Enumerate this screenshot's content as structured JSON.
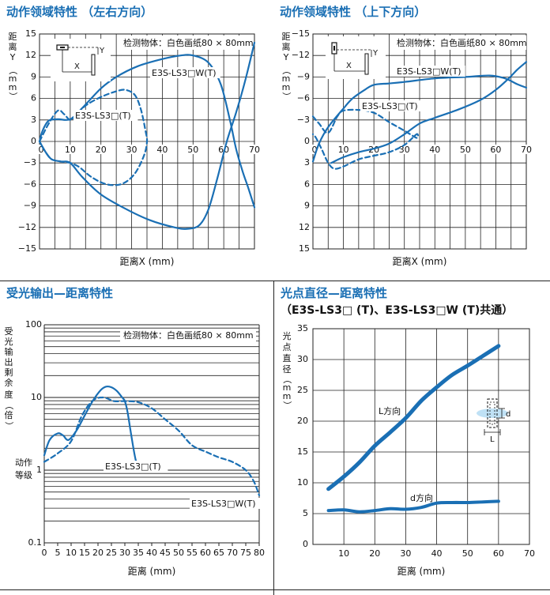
{
  "chart_data": [
    {
      "type": "line",
      "title": "动作领域特性 （左右方向）",
      "xlabel": "距离X (mm)",
      "ylabel": "距离Y（mm）",
      "xlim": [
        0,
        70
      ],
      "ylim": [
        -15,
        15
      ],
      "xticks": [
        0,
        10,
        20,
        30,
        40,
        50,
        60,
        70
      ],
      "yticks": [
        15,
        12,
        9,
        6,
        3,
        0,
        -3,
        -6,
        -9,
        -12,
        -15
      ],
      "grid": true,
      "note": "检测物体：白色画纸80 × 80mm",
      "series": [
        {
          "name": "E3S-LS3□W(T)",
          "style": "solid",
          "points": [
            [
              0,
              0
            ],
            [
              1,
              1.5
            ],
            [
              3,
              2.9
            ],
            [
              6,
              3.1
            ],
            [
              10,
              3.1
            ],
            [
              14,
              4.7
            ],
            [
              20,
              7.4
            ],
            [
              25,
              9.0
            ],
            [
              32,
              10.5
            ],
            [
              40,
              11.5
            ],
            [
              46,
              12.0
            ],
            [
              50,
              12.0
            ],
            [
              55,
              11.0
            ],
            [
              59,
              8.0
            ],
            [
              62,
              3.0
            ],
            [
              64,
              -1.0
            ],
            [
              66,
              -4.0
            ],
            [
              68,
              -6.5
            ],
            [
              70,
              -9.2
            ]
          ]
        },
        {
          "name": "E3S-LS3□W(T)",
          "style": "solid",
          "points": [
            [
              0,
              0
            ],
            [
              2,
              -1.5
            ],
            [
              4,
              -2.5
            ],
            [
              7,
              -2.8
            ],
            [
              10,
              -3.0
            ],
            [
              14,
              -5.0
            ],
            [
              20,
              -7.4
            ],
            [
              28,
              -9.4
            ],
            [
              36,
              -11.0
            ],
            [
              44,
              -12.0
            ],
            [
              48,
              -12.2
            ],
            [
              52,
              -11.7
            ],
            [
              55,
              -9.5
            ],
            [
              58,
              -5.0
            ],
            [
              61,
              0.0
            ],
            [
              64,
              4.0
            ],
            [
              67,
              8.5
            ],
            [
              70,
              13.8
            ]
          ]
        },
        {
          "name": "E3S-LS3□(T)",
          "style": "dashed",
          "points": [
            [
              0,
              0
            ],
            [
              3,
              2.5
            ],
            [
              6,
              4.3
            ],
            [
              8,
              3.8
            ],
            [
              10,
              3.0
            ],
            [
              12,
              3.7
            ],
            [
              15,
              5.0
            ],
            [
              20,
              6.2
            ],
            [
              25,
              7.0
            ],
            [
              28,
              7.2
            ],
            [
              31,
              6.5
            ],
            [
              33,
              4.5
            ],
            [
              34.5,
              1.5
            ],
            [
              35,
              0
            ],
            [
              34,
              -2.0
            ],
            [
              31,
              -4.5
            ],
            [
              27,
              -5.9
            ],
            [
              22,
              -6.0
            ],
            [
              17,
              -5.0
            ],
            [
              13,
              -3.6
            ],
            [
              10,
              -3.0
            ],
            [
              7,
              -2.8
            ],
            [
              4,
              -2.5
            ],
            [
              2,
              -1.5
            ],
            [
              0,
              0
            ]
          ]
        }
      ]
    },
    {
      "type": "line",
      "title": "动作领域特性 （上下方向）",
      "xlabel": "距离X (mm)",
      "ylabel": "距离Y（mm）",
      "xlim": [
        0,
        70
      ],
      "ylim": [
        -15,
        15
      ],
      "xticks": [
        0,
        10,
        20,
        30,
        40,
        50,
        60,
        70
      ],
      "yticks": [
        -15,
        -12,
        -9,
        -6,
        -3,
        0,
        3,
        6,
        9,
        12,
        15
      ],
      "grid": true,
      "note": "检测物体：白色画纸80 × 80mm",
      "series": [
        {
          "name": "E3S-LS3□W(T)",
          "style": "solid",
          "points": [
            [
              0,
              2.8
            ],
            [
              2,
              0.3
            ],
            [
              5,
              -2.0
            ],
            [
              10,
              -4.6
            ],
            [
              13,
              -6.0
            ],
            [
              17,
              -7.2
            ],
            [
              20,
              -7.9
            ],
            [
              25,
              -8.1
            ],
            [
              30,
              -8.3
            ],
            [
              40,
              -8.8
            ],
            [
              50,
              -9.0
            ],
            [
              58,
              -9.2
            ],
            [
              63,
              -8.8
            ],
            [
              67,
              -8.0
            ],
            [
              70,
              -7.5
            ]
          ]
        },
        {
          "name": "E3S-LS3□W(T)",
          "style": "solid",
          "points": [
            [
              6,
              3.0
            ],
            [
              10,
              2.2
            ],
            [
              15,
              1.5
            ],
            [
              20,
              1.0
            ],
            [
              25,
              0.3
            ],
            [
              30,
              -1.0
            ],
            [
              35,
              -2.5
            ],
            [
              40,
              -3.3
            ],
            [
              48,
              -4.5
            ],
            [
              55,
              -5.8
            ],
            [
              60,
              -7.2
            ],
            [
              64,
              -8.7
            ],
            [
              67,
              -10.0
            ],
            [
              70,
              -11.1
            ]
          ]
        },
        {
          "name": "E3S-LS3□(T)",
          "style": "dashed",
          "points": [
            [
              0,
              -3.5
            ],
            [
              2,
              -2.5
            ],
            [
              5,
              -1.2
            ],
            [
              8,
              -3.5
            ],
            [
              10,
              -4.3
            ],
            [
              15,
              -4.4
            ],
            [
              20,
              -4.0
            ],
            [
              25,
              -2.7
            ],
            [
              30,
              -1.5
            ],
            [
              34,
              -0.5
            ],
            [
              34,
              -1.0
            ],
            [
              30,
              0.5
            ],
            [
              25,
              1.5
            ],
            [
              20,
              2.0
            ],
            [
              15,
              2.5
            ],
            [
              10,
              3.5
            ],
            [
              7,
              3.8
            ],
            [
              5,
              3.0
            ],
            [
              3,
              1.2
            ],
            [
              1,
              -0.5
            ],
            [
              0,
              -1.0
            ]
          ]
        }
      ]
    },
    {
      "type": "line",
      "title": "受光输出—距离特性",
      "xlabel": "距离 (mm)",
      "ylabel": "受光输出剩余度（倍）",
      "yscale": "log",
      "xlim": [
        0,
        80
      ],
      "ylim": [
        0.1,
        100
      ],
      "xticks": [
        0,
        5,
        10,
        15,
        20,
        25,
        30,
        35,
        40,
        45,
        50,
        55,
        60,
        65,
        70,
        75,
        80
      ],
      "yticks": [
        100,
        10,
        1,
        0.1
      ],
      "ytick_labels": [
        "100",
        "10",
        "1",
        "0.1"
      ],
      "ylabel_extra": "动作等级",
      "grid": true,
      "note": "检测物体：白色画纸80 × 80mm",
      "series": [
        {
          "name": "E3S-LS3□(T)",
          "style": "solid",
          "points": [
            [
              0,
              1.6
            ],
            [
              2,
              2.6
            ],
            [
              5,
              3.2
            ],
            [
              7,
              3.0
            ],
            [
              9,
              2.6
            ],
            [
              12,
              3.5
            ],
            [
              15,
              5.6
            ],
            [
              18,
              8.9
            ],
            [
              21,
              12.6
            ],
            [
              23,
              14.1
            ],
            [
              25,
              13.8
            ],
            [
              27,
              12.3
            ],
            [
              29,
              10.0
            ],
            [
              30,
              8.9
            ],
            [
              31,
              6.3
            ],
            [
              32,
              3.7
            ],
            [
              33,
              2.2
            ],
            [
              34,
              1.4
            ],
            [
              35,
              1.1
            ]
          ]
        },
        {
          "name": "E3S-LS3□W(T)",
          "style": "dashed",
          "points": [
            [
              0,
              1.3
            ],
            [
              5,
              1.7
            ],
            [
              10,
              2.5
            ],
            [
              14,
              5.6
            ],
            [
              18,
              9.0
            ],
            [
              22,
              10.0
            ],
            [
              26,
              8.9
            ],
            [
              30,
              8.9
            ],
            [
              35,
              8.6
            ],
            [
              40,
              7.1
            ],
            [
              45,
              5.0
            ],
            [
              50,
              3.5
            ],
            [
              55,
              2.2
            ],
            [
              60,
              1.8
            ],
            [
              65,
              1.5
            ],
            [
              70,
              1.3
            ],
            [
              75,
              1.0
            ],
            [
              78,
              0.7
            ],
            [
              80,
              0.45
            ]
          ]
        }
      ]
    },
    {
      "type": "line",
      "title": "光点直径—距离特性",
      "subtitle": "（E3S-LS3□ (T)、E3S-LS3□W (T)共通）",
      "xlabel": "距离 (mm)",
      "ylabel": "光点直径（mm）",
      "xlim": [
        0,
        70
      ],
      "ylim": [
        0,
        35
      ],
      "xticks": [
        0,
        10,
        20,
        30,
        40,
        50,
        60,
        70
      ],
      "yticks": [
        0,
        5,
        10,
        15,
        20,
        25,
        30,
        35
      ],
      "grid": true,
      "series": [
        {
          "name": "L方向",
          "style": "solid",
          "points": [
            [
              5,
              9.0
            ],
            [
              10,
              11.0
            ],
            [
              15,
              13.3
            ],
            [
              20,
              16.0
            ],
            [
              25,
              18.2
            ],
            [
              30,
              20.5
            ],
            [
              35,
              23.3
            ],
            [
              40,
              25.5
            ],
            [
              45,
              27.5
            ],
            [
              50,
              29.0
            ],
            [
              55,
              30.6
            ],
            [
              60,
              32.2
            ]
          ]
        },
        {
          "name": "d方向",
          "style": "solid",
          "points": [
            [
              5,
              5.5
            ],
            [
              10,
              5.6
            ],
            [
              15,
              5.3
            ],
            [
              20,
              5.5
            ],
            [
              25,
              5.8
            ],
            [
              30,
              5.7
            ],
            [
              35,
              6.0
            ],
            [
              40,
              6.7
            ],
            [
              45,
              6.8
            ],
            [
              50,
              6.8
            ],
            [
              55,
              6.9
            ],
            [
              60,
              7.0
            ]
          ]
        }
      ]
    }
  ],
  "icons": [
    "sensor-diagram-icon",
    "spot-diagram-icon"
  ],
  "colors": {
    "curve": "#1a6fb4",
    "title": "#1a6fb4",
    "grid": "#222222"
  }
}
